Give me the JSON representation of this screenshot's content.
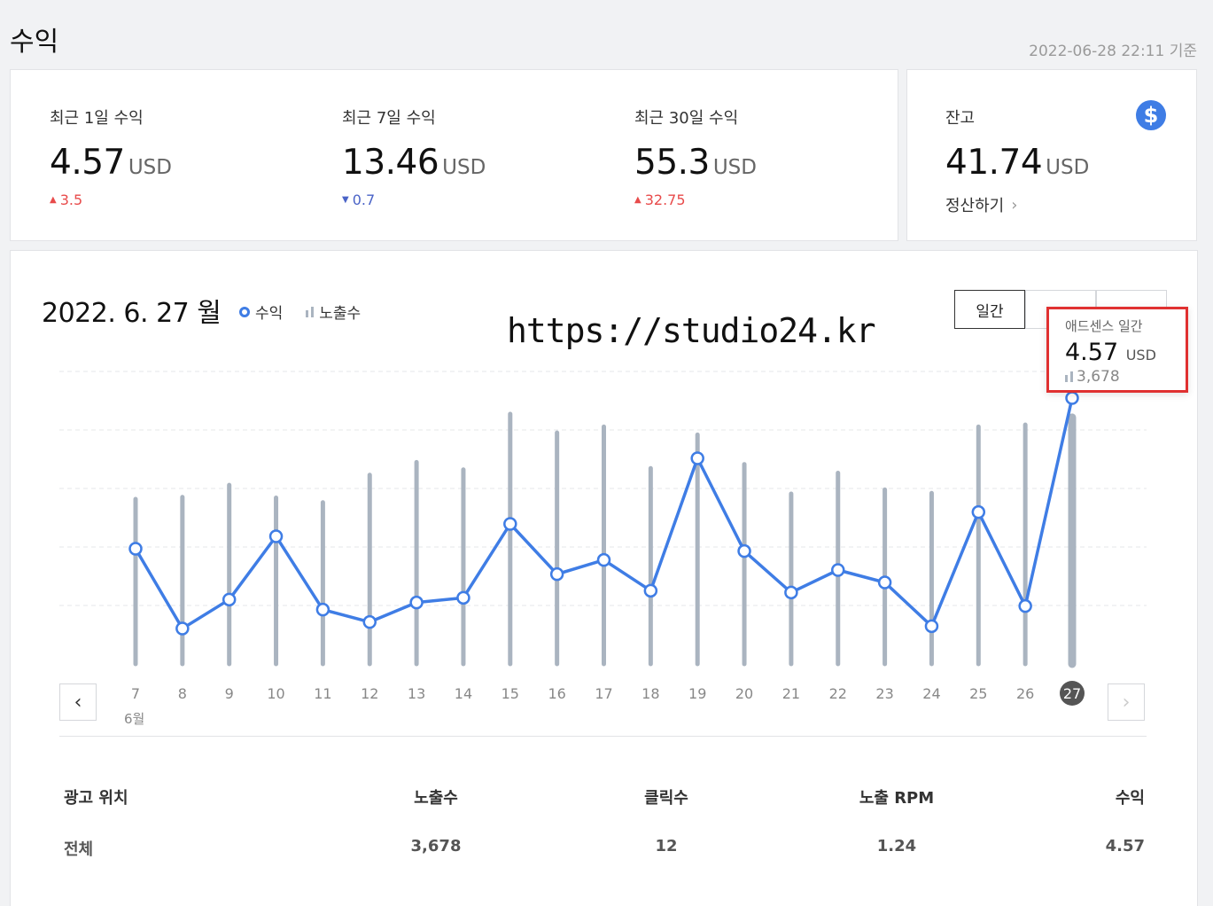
{
  "page": {
    "title": "수익",
    "timestamp": "2022-06-28 22:11 기준"
  },
  "summary": [
    {
      "label": "최근 1일 수익",
      "value": "4.57",
      "unit": "USD",
      "change": "3.5",
      "direction": "up"
    },
    {
      "label": "최근 7일 수익",
      "value": "13.46",
      "unit": "USD",
      "change": "0.7",
      "direction": "down"
    },
    {
      "label": "최근 30일 수익",
      "value": "55.3",
      "unit": "USD",
      "change": "32.75",
      "direction": "up"
    }
  ],
  "balance": {
    "label": "잔고",
    "value": "41.74",
    "unit": "USD",
    "settle_label": "정산하기",
    "icon": "dollar-icon"
  },
  "chart_header": {
    "date": "2022. 6. 27 월",
    "legend_revenue": "수익",
    "legend_impressions": "노출수",
    "watermark": "https://studio24.kr",
    "tabs": [
      "일간",
      "",
      ""
    ]
  },
  "tooltip": {
    "title": "애드센스 일간",
    "value": "4.57",
    "unit": "USD",
    "impressions": "3,678"
  },
  "colors": {
    "line": "#3f7de5",
    "bars": "#aab4c0",
    "highlight": "#e03131",
    "up": "#e84b4b",
    "down": "#4a63c7"
  },
  "chart_data": {
    "type": "line",
    "x": [
      "7",
      "8",
      "9",
      "10",
      "11",
      "12",
      "13",
      "14",
      "15",
      "16",
      "17",
      "18",
      "19",
      "20",
      "21",
      "22",
      "23",
      "24",
      "25",
      "26",
      "27"
    ],
    "month_label": "6월",
    "selected": "27",
    "series": [
      {
        "name": "수익",
        "kind": "line",
        "values": [
          2.02,
          0.67,
          1.16,
          2.23,
          0.99,
          0.78,
          1.11,
          1.19,
          2.44,
          1.59,
          1.83,
          1.31,
          3.55,
          1.98,
          1.28,
          1.66,
          1.45,
          0.71,
          2.64,
          1.05,
          4.57
        ]
      },
      {
        "name": "노출수",
        "kind": "bar",
        "values": [
          2460,
          2490,
          2670,
          2480,
          2410,
          2820,
          3010,
          2900,
          3730,
          3450,
          3540,
          2920,
          3420,
          2980,
          2540,
          2850,
          2600,
          2550,
          3540,
          3570,
          3678
        ]
      }
    ],
    "gridlines": true
  },
  "nav": {
    "prev": "‹",
    "next": "›"
  },
  "table": {
    "headers": [
      "광고 위치",
      "노출수",
      "클릭수",
      "노출 RPM",
      "수익"
    ],
    "rows": [
      [
        "전체",
        "3,678",
        "12",
        "1.24",
        "4.57"
      ]
    ]
  }
}
